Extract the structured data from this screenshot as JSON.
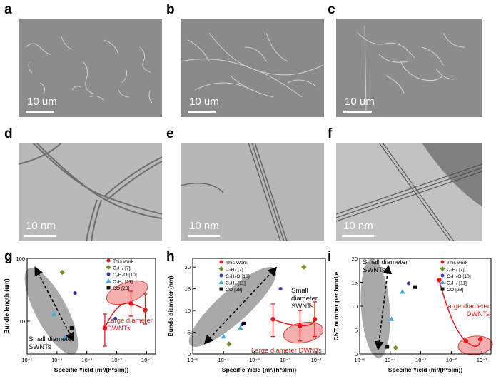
{
  "panel_labels": [
    "a",
    "b",
    "c",
    "d",
    "e",
    "f",
    "g",
    "h",
    "i"
  ],
  "scale_bars": [
    "10 um",
    "10 um",
    "10 um",
    "10 nm",
    "10 nm",
    "10 nm"
  ],
  "legend": [
    "This work",
    "C₂H₆ [7]",
    "C₂H₆O [10]",
    "C₂H₄ [11]",
    "CO [28]"
  ],
  "legend_h": [
    "This Work",
    "C₂H₆ [7]",
    "C₂H₆O [10]",
    "C₂H₄ [11]",
    "CO [28]"
  ],
  "colors": {
    "this_work": "#e41a1c",
    "c2h6": "#6b8e23",
    "c2h6o": "#3a3aa8",
    "c2h4": "#3fa9e0",
    "co": "#111111",
    "ellipse_gray": "#9a9a9a",
    "ellipse_red": "#f2a0a0"
  },
  "x_ticks": [
    "10⁻⁵",
    "10⁻⁴",
    "10⁻³",
    "10⁻²",
    "10⁻¹"
  ],
  "chart_data": [
    {
      "type": "scatter",
      "panel": "g",
      "xlabel": "Specific Yield (m²/(h*slm))",
      "ylabel": "Bundle length (um)",
      "x_scale": "log",
      "y_scale": "log",
      "xlim": [
        1e-05,
        0.2
      ],
      "ylim": [
        3,
        100
      ],
      "y_ticks": [
        "100",
        "10"
      ],
      "annotations": [
        "Small diameter SWNTs",
        "Large diameter DWNTs"
      ],
      "series": [
        {
          "name": "This work",
          "points": [
            [
              0.004,
              7.8
            ],
            [
              0.03,
              19
            ],
            [
              0.09,
              15
            ]
          ],
          "errors": [
            [
              4,
              13
            ],
            [
              12,
              30
            ],
            [
              9,
              27
            ]
          ]
        },
        {
          "name": "C₂H₆ [7]",
          "points": [
            [
              0.00015,
              60
            ]
          ]
        },
        {
          "name": "C₂H₆O [10]",
          "points": [
            [
              0.0004,
              28
            ],
            [
              0.009,
              11
            ]
          ]
        },
        {
          "name": "C₂H₄ [11]",
          "points": [
            [
              8e-05,
              13
            ],
            [
              0.00018,
              5.5
            ]
          ]
        },
        {
          "name": "CO [28]",
          "points": [
            [
              0.00031,
              7.8
            ]
          ]
        }
      ]
    },
    {
      "type": "scatter",
      "panel": "h",
      "xlabel": "Specific Yield (m²/(h*slm))",
      "ylabel": "Bunde diameter (nm)",
      "x_scale": "log",
      "xlim": [
        1e-05,
        0.2
      ],
      "ylim": [
        0,
        22
      ],
      "y_ticks": [
        "0",
        "5",
        "10",
        "15",
        "20"
      ],
      "annotations": [
        "Small diameter SWNTs",
        "Large diameter DWNTs"
      ],
      "series": [
        {
          "name": "This Work",
          "points": [
            [
              0.004,
              8
            ],
            [
              0.03,
              6.5
            ],
            [
              0.09,
              8
            ]
          ],
          "errors": [
            [
              4,
              11.5
            ],
            [
              3,
              10
            ],
            [
              4,
              12
            ]
          ]
        },
        {
          "name": "C₂H₆ [7]",
          "points": [
            [
              0.00015,
              2.3
            ],
            [
              0.04,
              20
            ]
          ]
        },
        {
          "name": "C₂H₆O [10]",
          "points": [
            [
              0.0004,
              6.8
            ],
            [
              0.007,
              15
            ]
          ]
        },
        {
          "name": "C₂H₄ [11]",
          "points": [
            [
              0.0001,
              4
            ],
            [
              0.00035,
              6
            ]
          ]
        },
        {
          "name": "CO [28]",
          "points": [
            [
              0.00045,
              7
            ]
          ]
        }
      ]
    },
    {
      "type": "scatter",
      "panel": "i",
      "xlabel": "Specific Yield (m²/(h*slm))",
      "ylabel": "CNT number per bundle",
      "x_scale": "log",
      "xlim": [
        1e-05,
        0.2
      ],
      "ylim": [
        0,
        20
      ],
      "y_ticks": [
        "0",
        "5",
        "10",
        "15",
        "20"
      ],
      "annotations": [
        "Small diameter SWNTs",
        "Large diameter DWNTs"
      ],
      "series": [
        {
          "name": "This work",
          "points": [
            [
              0.004,
              15.5
            ],
            [
              0.03,
              2.7
            ],
            [
              0.09,
              3.1
            ]
          ]
        },
        {
          "name": "C₂H₆ [7]",
          "points": [
            [
              0.00015,
              1.3
            ]
          ]
        },
        {
          "name": "C₂H₆O [10]",
          "points": [
            [
              0.0004,
              14.8
            ]
          ]
        },
        {
          "name": "C₂H₄ [11]",
          "points": [
            [
              0.00011,
              7.3
            ],
            [
              0.00025,
              13
            ]
          ]
        },
        {
          "name": "CO [28]",
          "points": [
            [
              8e-05,
              1.5
            ],
            [
              0.00065,
              14
            ]
          ]
        }
      ]
    }
  ]
}
